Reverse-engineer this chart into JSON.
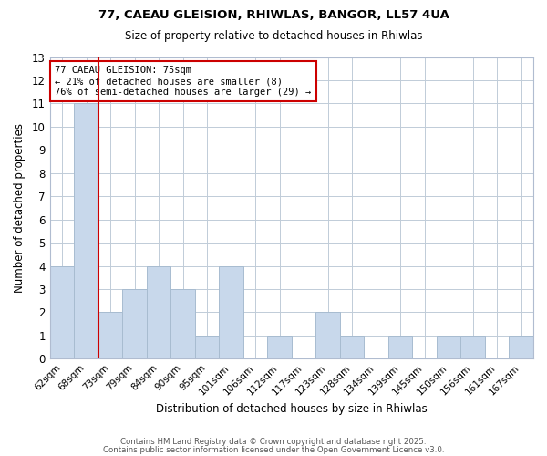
{
  "title1": "77, CAEAU GLEISION, RHIWLAS, BANGOR, LL57 4UA",
  "title2": "Size of property relative to detached houses in Rhiwlas",
  "xlabel": "Distribution of detached houses by size in Rhiwlas",
  "ylabel": "Number of detached properties",
  "bins": [
    "62sqm",
    "68sqm",
    "73sqm",
    "79sqm",
    "84sqm",
    "90sqm",
    "95sqm",
    "101sqm",
    "106sqm",
    "112sqm",
    "117sqm",
    "123sqm",
    "128sqm",
    "134sqm",
    "139sqm",
    "145sqm",
    "150sqm",
    "156sqm",
    "161sqm",
    "167sqm"
  ],
  "counts": [
    4,
    11,
    2,
    3,
    4,
    3,
    1,
    4,
    0,
    1,
    0,
    2,
    1,
    0,
    1,
    0,
    1,
    1,
    0,
    1
  ],
  "bar_color": "#c8d8eb",
  "bar_edge_color": "#a8bcd0",
  "redline_index": 1,
  "annotation_title": "77 CAEAU GLEISION: 75sqm",
  "annotation_line2": "← 21% of detached houses are smaller (8)",
  "annotation_line3": "76% of semi-detached houses are larger (29) →",
  "annotation_box_color": "#ffffff",
  "annotation_box_edge": "#cc0000",
  "redline_color": "#cc0000",
  "ylim": [
    0,
    13
  ],
  "yticks": [
    0,
    1,
    2,
    3,
    4,
    5,
    6,
    7,
    8,
    9,
    10,
    11,
    12,
    13
  ],
  "footer1": "Contains HM Land Registry data © Crown copyright and database right 2025.",
  "footer2": "Contains public sector information licensed under the Open Government Licence v3.0.",
  "bg_color": "#ffffff",
  "grid_color": "#c0ccd8"
}
